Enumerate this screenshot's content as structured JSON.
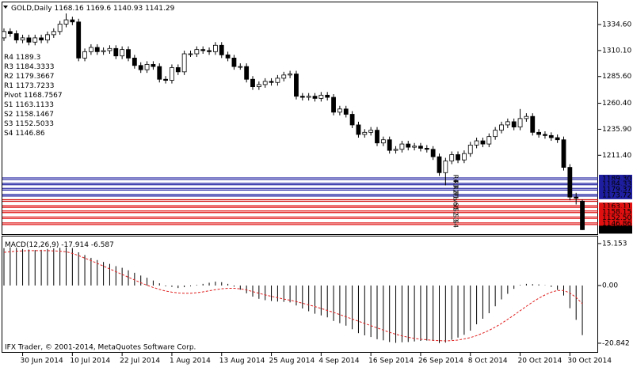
{
  "watermark": "IFX Trader, © 2001-2014, MetaQuotes Software Corp.",
  "chart_data": [
    {
      "type": "candlestick",
      "title": "GOLD,Daily",
      "categories": [
        null,
        null,
        null,
        "30 Jun 2014",
        null,
        null,
        null,
        null,
        null,
        null,
        null,
        "10 Jul 2014",
        null,
        null,
        null,
        null,
        null,
        null,
        null,
        "22 Jul 2014",
        null,
        null,
        null,
        null,
        null,
        null,
        null,
        "1 Aug 2014",
        null,
        null,
        null,
        null,
        null,
        null,
        null,
        "13 Aug 2014",
        null,
        null,
        null,
        null,
        null,
        null,
        null,
        "25 Aug 2014",
        null,
        null,
        null,
        null,
        null,
        null,
        null,
        "4 Sep 2014",
        null,
        null,
        null,
        null,
        null,
        null,
        null,
        "16 Sep 2014",
        null,
        null,
        null,
        null,
        null,
        null,
        null,
        "26 Sep 2014",
        null,
        null,
        null,
        null,
        null,
        null,
        null,
        "8 Oct 2014",
        null,
        null,
        null,
        null,
        null,
        null,
        null,
        "20 Oct 2014",
        null,
        null,
        null,
        null,
        null,
        null,
        null,
        "30 Oct 2014",
        null,
        null
      ],
      "candles": [
        [
          1322,
          1331,
          1319,
          1328
        ],
        [
          1328,
          1331,
          1323,
          1326
        ],
        [
          1326,
          1329,
          1317,
          1320
        ],
        [
          1320,
          1325,
          1317,
          1322
        ],
        [
          1322,
          1325,
          1315,
          1318
        ],
        [
          1318,
          1325,
          1315,
          1322
        ],
        [
          1322,
          1325,
          1317,
          1320
        ],
        [
          1320,
          1328,
          1317,
          1325
        ],
        [
          1325,
          1331,
          1322,
          1328
        ],
        [
          1328,
          1338,
          1325,
          1335
        ],
        [
          1335,
          1345,
          1332,
          1339
        ],
        [
          1339,
          1342,
          1334,
          1337
        ],
        [
          1337,
          1340,
          1300,
          1303
        ],
        [
          1303,
          1312,
          1300,
          1309
        ],
        [
          1309,
          1316,
          1306,
          1313
        ],
        [
          1313,
          1316,
          1306,
          1309
        ],
        [
          1309,
          1313,
          1306,
          1310
        ],
        [
          1310,
          1315,
          1307,
          1312
        ],
        [
          1312,
          1315,
          1302,
          1305
        ],
        [
          1305,
          1314,
          1302,
          1311
        ],
        [
          1311,
          1314,
          1300,
          1303
        ],
        [
          1303,
          1306,
          1293,
          1296
        ],
        [
          1296,
          1299,
          1289,
          1292
        ],
        [
          1292,
          1300,
          1289,
          1297
        ],
        [
          1297,
          1300,
          1292,
          1295
        ],
        [
          1295,
          1298,
          1280,
          1283
        ],
        [
          1283,
          1286,
          1279,
          1282
        ],
        [
          1282,
          1297,
          1279,
          1294
        ],
        [
          1294,
          1297,
          1287,
          1290
        ],
        [
          1290,
          1310,
          1287,
          1307
        ],
        [
          1307,
          1310,
          1304,
          1307
        ],
        [
          1307,
          1314,
          1304,
          1311
        ],
        [
          1311,
          1314,
          1307,
          1310
        ],
        [
          1310,
          1313,
          1306,
          1309
        ],
        [
          1309,
          1318,
          1306,
          1315
        ],
        [
          1315,
          1318,
          1303,
          1306
        ],
        [
          1306,
          1309,
          1300,
          1303
        ],
        [
          1303,
          1306,
          1292,
          1295
        ],
        [
          1295,
          1298,
          1292,
          1295
        ],
        [
          1295,
          1298,
          1280,
          1283
        ],
        [
          1283,
          1286,
          1273,
          1276
        ],
        [
          1276,
          1281,
          1273,
          1278
        ],
        [
          1278,
          1284,
          1275,
          1281
        ],
        [
          1281,
          1284,
          1277,
          1280
        ],
        [
          1280,
          1287,
          1277,
          1284
        ],
        [
          1284,
          1290,
          1281,
          1287
        ],
        [
          1287,
          1291,
          1284,
          1288
        ],
        [
          1288,
          1291,
          1264,
          1267
        ],
        [
          1267,
          1270,
          1263,
          1266
        ],
        [
          1266,
          1270,
          1263,
          1267
        ],
        [
          1267,
          1270,
          1262,
          1265
        ],
        [
          1265,
          1271,
          1262,
          1268
        ],
        [
          1268,
          1271,
          1263,
          1266
        ],
        [
          1266,
          1269,
          1249,
          1252
        ],
        [
          1252,
          1258,
          1249,
          1255
        ],
        [
          1255,
          1258,
          1247,
          1250
        ],
        [
          1250,
          1253,
          1237,
          1240
        ],
        [
          1240,
          1243,
          1228,
          1231
        ],
        [
          1231,
          1236,
          1228,
          1233
        ],
        [
          1233,
          1238,
          1230,
          1235
        ],
        [
          1235,
          1238,
          1220,
          1223
        ],
        [
          1223,
          1229,
          1220,
          1226
        ],
        [
          1226,
          1229,
          1213,
          1216
        ],
        [
          1216,
          1220,
          1213,
          1217
        ],
        [
          1217,
          1225,
          1214,
          1222
        ],
        [
          1222,
          1225,
          1216,
          1219
        ],
        [
          1219,
          1223,
          1216,
          1220
        ],
        [
          1220,
          1223,
          1215,
          1218
        ],
        [
          1218,
          1221,
          1214,
          1217
        ],
        [
          1217,
          1220,
          1207,
          1210
        ],
        [
          1210,
          1213,
          1192,
          1195
        ],
        [
          1195,
          1209,
          1183,
          1206
        ],
        [
          1206,
          1215,
          1203,
          1212
        ],
        [
          1212,
          1215,
          1204,
          1207
        ],
        [
          1207,
          1216,
          1204,
          1213
        ],
        [
          1213,
          1224,
          1210,
          1221
        ],
        [
          1221,
          1228,
          1218,
          1225
        ],
        [
          1225,
          1228,
          1219,
          1222
        ],
        [
          1222,
          1232,
          1219,
          1229
        ],
        [
          1229,
          1238,
          1226,
          1235
        ],
        [
          1235,
          1243,
          1232,
          1240
        ],
        [
          1240,
          1246,
          1237,
          1243
        ],
        [
          1243,
          1246,
          1235,
          1238
        ],
        [
          1238,
          1255,
          1235,
          1246
        ],
        [
          1246,
          1251,
          1243,
          1248
        ],
        [
          1248,
          1251,
          1230,
          1233
        ],
        [
          1233,
          1236,
          1228,
          1231
        ],
        [
          1231,
          1234,
          1227,
          1230
        ],
        [
          1230,
          1233,
          1225,
          1228
        ],
        [
          1228,
          1231,
          1223,
          1226
        ],
        [
          1226,
          1229,
          1197,
          1200
        ],
        [
          1200,
          1203,
          1169,
          1172
        ],
        [
          1172,
          1176,
          1165,
          1171
        ],
        [
          1168.16,
          1169.6,
          1140.93,
          1141.29
        ]
      ],
      "ylim": [
        1137.1,
        1356.2
      ],
      "yticks": [
        {
          "value": 1334.6,
          "label": "1334.60"
        },
        {
          "value": 1310.1,
          "label": "1310.10"
        },
        {
          "value": 1285.6,
          "label": "1285.60"
        },
        {
          "value": 1260.4,
          "label": "1260.40"
        },
        {
          "value": 1235.9,
          "label": "1235.90"
        },
        {
          "value": 1211.4,
          "label": "1211.40"
        }
      ],
      "levels": [
        {
          "name": "R4",
          "value": 1189.3,
          "label": "1189.30",
          "color": "#1e1ea0"
        },
        {
          "name": "R3",
          "value": 1184.3333,
          "label": "1184.33",
          "color": "#1e1ea0"
        },
        {
          "name": "R2",
          "value": 1179.3667,
          "label": "1179.37",
          "color": "#1e1ea0"
        },
        {
          "name": "R1",
          "value": 1173.7233,
          "label": "1173.72",
          "color": "#1e1ea0"
        },
        {
          "name": "Pivot",
          "value": 1168.7567,
          "color": "#d01010"
        },
        {
          "name": "S1",
          "value": 1163.1133,
          "label": "1163.11",
          "color": "#e01010"
        },
        {
          "name": "S2",
          "value": 1158.1467,
          "label": "1158.15",
          "color": "#e01010"
        },
        {
          "name": "S3",
          "value": 1152.5033,
          "label": "1152.50",
          "color": "#e01010"
        },
        {
          "name": "S4",
          "value": 1146.86,
          "label": "1146.86",
          "color": "#e01010"
        }
      ]
    },
    {
      "type": "macd",
      "title": "MACD(12,26,9)",
      "color": "#000000",
      "signal_color": "#e02020",
      "values": [
        13.5,
        13.8,
        13.6,
        13.2,
        13.0,
        12.8,
        12.9,
        13.2,
        13.4,
        13.6,
        13.8,
        13.5,
        12.0,
        11.0,
        10.0,
        9.2,
        8.5,
        7.8,
        7.0,
        6.4,
        5.5,
        4.6,
        3.6,
        2.8,
        1.8,
        0.8,
        -0.3,
        -0.5,
        -0.9,
        -0.6,
        -0.3,
        0.2,
        0.6,
        1.0,
        1.4,
        1.2,
        0.6,
        -0.4,
        -1.5,
        -2.8,
        -4.0,
        -4.8,
        -5.3,
        -5.6,
        -5.8,
        -5.9,
        -6.1,
        -7.2,
        -8.3,
        -9.3,
        -10.2,
        -10.8,
        -11.5,
        -12.8,
        -13.6,
        -14.5,
        -15.8,
        -17.2,
        -18.0,
        -18.6,
        -19.4,
        -19.8,
        -20.4,
        -20.7,
        -20.5,
        -20.4,
        -20.2,
        -20.0,
        -19.9,
        -20.0,
        -20.8,
        -20.6,
        -19.6,
        -18.8,
        -17.8,
        -16.3,
        -14.0,
        -12.0,
        -10.0,
        -7.5,
        -5.0,
        -3.0,
        -1.2,
        0.2,
        0.6,
        0.5,
        0.4,
        0.1,
        -0.5,
        -1.6,
        -3.6,
        -8.2,
        -12.4,
        -17.914
      ],
      "signal": [
        12.0,
        12.2,
        12.4,
        12.5,
        12.6,
        12.6,
        12.6,
        12.6,
        12.5,
        12.4,
        12.2,
        11.6,
        10.8,
        9.9,
        9.0,
        8.0,
        7.0,
        6.0,
        5.0,
        4.0,
        3.0,
        2.0,
        1.0,
        0.1,
        -0.7,
        -1.4,
        -2.0,
        -2.4,
        -2.7,
        -2.8,
        -2.8,
        -2.6,
        -2.3,
        -1.9,
        -1.5,
        -1.2,
        -1.0,
        -1.0,
        -1.2,
        -1.6,
        -2.2,
        -2.8,
        -3.4,
        -3.9,
        -4.4,
        -4.9,
        -5.3,
        -5.8,
        -6.4,
        -7.0,
        -7.6,
        -8.3,
        -9.0,
        -9.7,
        -10.5,
        -11.3,
        -12.1,
        -12.9,
        -13.7,
        -14.5,
        -15.3,
        -16.1,
        -16.9,
        -17.6,
        -18.2,
        -18.7,
        -19.1,
        -19.4,
        -19.6,
        -19.8,
        -19.9,
        -20.0,
        -19.9,
        -19.7,
        -19.3,
        -18.8,
        -18.1,
        -17.2,
        -16.2,
        -15.0,
        -13.7,
        -12.2,
        -10.7,
        -9.1,
        -7.5,
        -6.0,
        -4.6,
        -3.4,
        -2.4,
        -1.8,
        -1.8,
        -2.7,
        -4.3,
        -6.587
      ],
      "ylim": [
        -24.0,
        17.7
      ],
      "yticks": [
        15.153,
        {
          "value": 0,
          "label": "0.00"
        },
        -20.842
      ]
    }
  ]
}
